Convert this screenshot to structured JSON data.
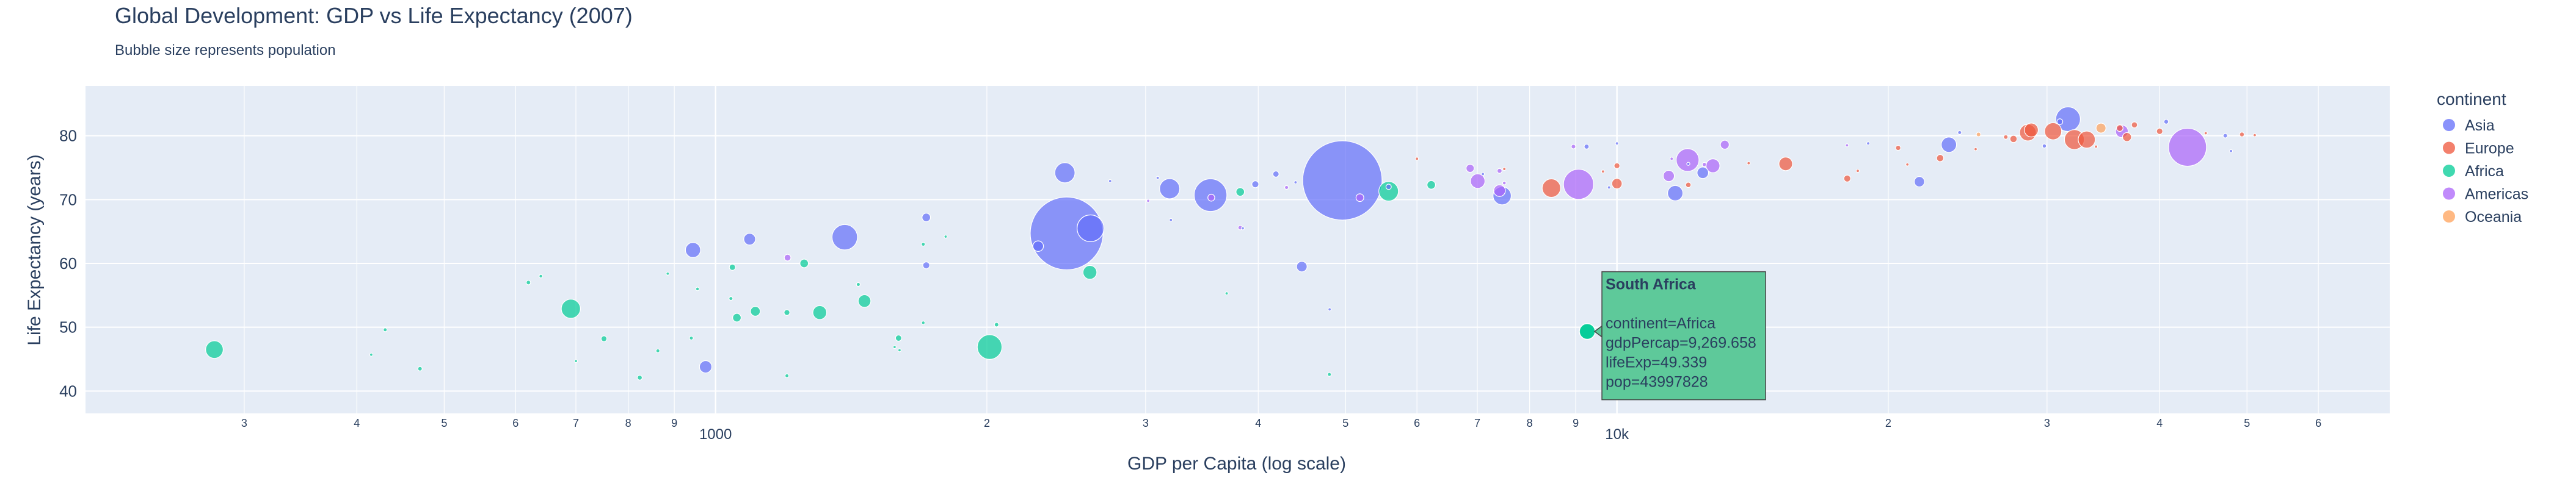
{
  "chart_data": {
    "type": "scatter",
    "title": "Global Development: GDP vs Life Expectancy (2007)",
    "subtitle": "Bubble size represents population",
    "xlabel": "GDP per Capita (log scale)",
    "ylabel": "Life Expectancy (years)",
    "x_scale": "log",
    "xlim": [
      200,
      72000
    ],
    "ylim": [
      36.5,
      87.8
    ],
    "y_ticks": [
      40,
      50,
      60,
      70,
      80
    ],
    "x_ticks_major": [
      {
        "value": 1000,
        "label": "1000"
      },
      {
        "value": 10000,
        "label": "10k"
      }
    ],
    "x_ticks_minor": [
      {
        "value": 300,
        "label": "3"
      },
      {
        "value": 400,
        "label": "4"
      },
      {
        "value": 500,
        "label": "5"
      },
      {
        "value": 600,
        "label": "6"
      },
      {
        "value": 700,
        "label": "7"
      },
      {
        "value": 800,
        "label": "8"
      },
      {
        "value": 900,
        "label": "9"
      },
      {
        "value": 2000,
        "label": "2"
      },
      {
        "value": 3000,
        "label": "3"
      },
      {
        "value": 4000,
        "label": "4"
      },
      {
        "value": 5000,
        "label": "5"
      },
      {
        "value": 6000,
        "label": "6"
      },
      {
        "value": 7000,
        "label": "7"
      },
      {
        "value": 8000,
        "label": "8"
      },
      {
        "value": 9000,
        "label": "9"
      },
      {
        "value": 20000,
        "label": "2"
      },
      {
        "value": 30000,
        "label": "3"
      },
      {
        "value": 40000,
        "label": "4"
      },
      {
        "value": 50000,
        "label": "5"
      },
      {
        "value": 60000,
        "label": "6"
      }
    ],
    "legend": {
      "title": "continent",
      "placement": "right",
      "entries": [
        {
          "name": "Asia",
          "color": "#636efa"
        },
        {
          "name": "Europe",
          "color": "#ef553b"
        },
        {
          "name": "Africa",
          "color": "#00cc96"
        },
        {
          "name": "Americas",
          "color": "#ab63fa"
        },
        {
          "name": "Oceania",
          "color": "#ffa15a"
        }
      ]
    },
    "series": [
      {
        "name": "Asia",
        "color": "#636efa",
        "points": [
          {
            "gdp": 2452,
            "life": 64.7,
            "pop": 1110396331
          },
          {
            "gdp": 4959,
            "life": 73.0,
            "pop": 1318683096
          },
          {
            "gdp": 3541,
            "life": 70.7,
            "pop": 223547000
          },
          {
            "gdp": 2606,
            "life": 65.5,
            "pop": 150448339
          },
          {
            "gdp": 1391,
            "life": 64.1,
            "pop": 135031164
          },
          {
            "gdp": 3190,
            "life": 71.7,
            "pop": 85262356
          },
          {
            "gdp": 2441,
            "life": 74.2,
            "pop": 85262356
          },
          {
            "gdp": 7458,
            "life": 70.6,
            "pop": 69453570
          },
          {
            "gdp": 31656,
            "life": 82.6,
            "pop": 127467972
          },
          {
            "gdp": 11606,
            "life": 71.0,
            "pop": 49044790
          },
          {
            "gdp": 23348,
            "life": 78.6,
            "pop": 49044790
          },
          {
            "gdp": 944,
            "life": 62.1,
            "pop": 47761980
          },
          {
            "gdp": 975,
            "life": 43.8,
            "pop": 31889923
          },
          {
            "gdp": 1091,
            "life": 63.8,
            "pop": 28901790
          },
          {
            "gdp": 2280,
            "life": 62.7,
            "pop": 23301725
          },
          {
            "gdp": 4471,
            "life": 59.5,
            "pop": 23301725
          },
          {
            "gdp": 21654,
            "life": 72.8,
            "pop": 22276056
          },
          {
            "gdp": 12452,
            "life": 74.2,
            "pop": 27601038
          },
          {
            "gdp": 1713,
            "life": 67.2,
            "pop": 15000000
          },
          {
            "gdp": 1713,
            "life": 59.7,
            "pop": 10000000
          },
          {
            "gdp": 3970,
            "life": 72.4,
            "pop": 10000000
          },
          {
            "gdp": 4185,
            "life": 74.0,
            "pop": 8000000
          },
          {
            "gdp": 5581,
            "life": 72.0,
            "pop": 6000000
          },
          {
            "gdp": 9254,
            "life": 78.3,
            "pop": 5000000
          },
          {
            "gdp": 47307,
            "life": 80.0,
            "pop": 4000000
          },
          {
            "gdp": 31000,
            "life": 82.2,
            "pop": 7000000
          },
          {
            "gdp": 40676,
            "life": 82.2,
            "pop": 4500000
          },
          {
            "gdp": 24000,
            "life": 80.5,
            "pop": 3000000
          },
          {
            "gdp": 29796,
            "life": 78.4,
            "pop": 3500000
          },
          {
            "gdp": 19000,
            "life": 78.8,
            "pop": 2000000
          },
          {
            "gdp": 10000,
            "life": 78.8,
            "pop": 1000000
          },
          {
            "gdp": 12000,
            "life": 75.6,
            "pop": 2000000
          },
          {
            "gdp": 3094,
            "life": 73.4,
            "pop": 1000000
          },
          {
            "gdp": 2740,
            "life": 72.9,
            "pop": 1000000
          },
          {
            "gdp": 3200,
            "life": 66.8,
            "pop": 1000000
          },
          {
            "gdp": 3845,
            "life": 65.5,
            "pop": 1500000
          },
          {
            "gdp": 4400,
            "life": 72.7,
            "pop": 1500000
          },
          {
            "gdp": 7100,
            "life": 74.0,
            "pop": 1500000
          },
          {
            "gdp": 9800,
            "life": 71.9,
            "pop": 1000000
          },
          {
            "gdp": 48000,
            "life": 77.6,
            "pop": 900000
          },
          {
            "gdp": 4800,
            "life": 52.8,
            "pop": 800000
          }
        ]
      },
      {
        "name": "Europe",
        "color": "#ef553b",
        "points": [
          {
            "gdp": 32170,
            "life": 79.4,
            "pop": 82400996
          },
          {
            "gdp": 30470,
            "life": 80.7,
            "pop": 61083916
          },
          {
            "gdp": 33203,
            "life": 79.4,
            "pop": 60776238
          },
          {
            "gdp": 28570,
            "life": 80.5,
            "pop": 58147733
          },
          {
            "gdp": 28821,
            "life": 80.9,
            "pop": 40448191
          },
          {
            "gdp": 8458,
            "life": 71.8,
            "pop": 71158647
          },
          {
            "gdp": 15390,
            "life": 75.6,
            "pop": 38518241
          },
          {
            "gdp": 10000,
            "life": 72.5,
            "pop": 22276056
          },
          {
            "gdp": 36798,
            "life": 79.8,
            "pop": 16570613
          },
          {
            "gdp": 27538,
            "life": 79.5,
            "pop": 10706290
          },
          {
            "gdp": 22833,
            "life": 76.5,
            "pop": 10642836
          },
          {
            "gdp": 18009,
            "life": 73.3,
            "pop": 9956108
          },
          {
            "gdp": 36126,
            "life": 81.2,
            "pop": 9031088
          },
          {
            "gdp": 40000,
            "life": 80.7,
            "pop": 8199783
          },
          {
            "gdp": 37506,
            "life": 81.7,
            "pop": 7554661
          },
          {
            "gdp": 20510,
            "life": 78.1,
            "pop": 5468120
          },
          {
            "gdp": 49357,
            "life": 80.2,
            "pop": 4627926
          },
          {
            "gdp": 10000,
            "life": 75.3,
            "pop": 7000000
          },
          {
            "gdp": 12000,
            "life": 72.3,
            "pop": 6000000
          },
          {
            "gdp": 6000,
            "life": 76.4,
            "pop": 2000000
          },
          {
            "gdp": 7500,
            "life": 74.8,
            "pop": 2000000
          },
          {
            "gdp": 14000,
            "life": 75.7,
            "pop": 2000000
          },
          {
            "gdp": 18500,
            "life": 74.5,
            "pop": 2000000
          },
          {
            "gdp": 25000,
            "life": 77.9,
            "pop": 1500000
          },
          {
            "gdp": 21000,
            "life": 75.5,
            "pop": 2000000
          },
          {
            "gdp": 27000,
            "life": 79.8,
            "pop": 4000000
          },
          {
            "gdp": 34000,
            "life": 78.3,
            "pop": 1500000
          },
          {
            "gdp": 9650,
            "life": 74.4,
            "pop": 1500000
          },
          {
            "gdp": 45000,
            "life": 80.4,
            "pop": 1000000
          },
          {
            "gdp": 51000,
            "life": 80.1,
            "pop": 800000
          }
        ]
      },
      {
        "name": "Africa",
        "color": "#00cc96",
        "points": [
          {
            "gdp": 278,
            "life": 46.5,
            "pop": 64606759
          },
          {
            "gdp": 2014,
            "life": 46.9,
            "pop": 128000000
          },
          {
            "gdp": 691,
            "life": 52.9,
            "pop": 76511887
          },
          {
            "gdp": 1305,
            "life": 52.3,
            "pop": 40000000
          },
          {
            "gdp": 5581,
            "life": 71.3,
            "pop": 80264543
          },
          {
            "gdp": 2602,
            "life": 58.6,
            "pop": 40000000
          },
          {
            "gdp": 1463,
            "life": 54.1,
            "pop": 33333216
          },
          {
            "gdp": 9270,
            "life": 49.339,
            "pop": 43997828
          },
          {
            "gdp": 1107,
            "life": 52.5,
            "pop": 20000000
          },
          {
            "gdp": 1254,
            "life": 60.0,
            "pop": 15000000
          },
          {
            "gdp": 1056,
            "life": 51.5,
            "pop": 15000000
          },
          {
            "gdp": 3820,
            "life": 71.2,
            "pop": 15000000
          },
          {
            "gdp": 6223,
            "life": 72.3,
            "pop": 15000000
          },
          {
            "gdp": 1044,
            "life": 59.4,
            "pop": 8000000
          },
          {
            "gdp": 1596,
            "life": 48.3,
            "pop": 8000000
          },
          {
            "gdp": 752,
            "life": 48.2,
            "pop": 7000000
          },
          {
            "gdp": 1200,
            "life": 52.3,
            "pop": 7000000
          },
          {
            "gdp": 430,
            "life": 49.6,
            "pop": 3000000
          },
          {
            "gdp": 470,
            "life": 43.5,
            "pop": 4000000
          },
          {
            "gdp": 620,
            "life": 57.0,
            "pop": 4000000
          },
          {
            "gdp": 640,
            "life": 58.0,
            "pop": 2500000
          },
          {
            "gdp": 863,
            "life": 46.3,
            "pop": 3000000
          },
          {
            "gdp": 824,
            "life": 42.1,
            "pop": 5000000
          },
          {
            "gdp": 940,
            "life": 48.3,
            "pop": 3000000
          },
          {
            "gdp": 1200,
            "life": 42.4,
            "pop": 3000000
          },
          {
            "gdp": 1040,
            "life": 54.5,
            "pop": 3000000
          },
          {
            "gdp": 1440,
            "life": 56.7,
            "pop": 3000000
          },
          {
            "gdp": 2050,
            "life": 50.4,
            "pop": 4000000
          },
          {
            "gdp": 1700,
            "life": 63.0,
            "pop": 3000000
          },
          {
            "gdp": 1700,
            "life": 50.7,
            "pop": 2500000
          },
          {
            "gdp": 885,
            "life": 58.4,
            "pop": 2000000
          },
          {
            "gdp": 4797,
            "life": 42.6,
            "pop": 3000000
          },
          {
            "gdp": 955,
            "life": 56.0,
            "pop": 2500000
          },
          {
            "gdp": 1580,
            "life": 46.9,
            "pop": 500000
          },
          {
            "gdp": 1800,
            "life": 64.2,
            "pop": 800000
          },
          {
            "gdp": 3690,
            "life": 55.3,
            "pop": 700000
          },
          {
            "gdp": 700,
            "life": 44.7,
            "pop": 1000000
          },
          {
            "gdp": 415,
            "life": 45.7,
            "pop": 900000
          },
          {
            "gdp": 1600,
            "life": 46.4,
            "pop": 400000
          }
        ]
      },
      {
        "name": "Americas",
        "color": "#ab63fa",
        "points": [
          {
            "gdp": 42952,
            "life": 78.2,
            "pop": 301139947
          },
          {
            "gdp": 9066,
            "life": 72.4,
            "pop": 190010647
          },
          {
            "gdp": 11978,
            "life": 76.2,
            "pop": 108700891
          },
          {
            "gdp": 7007,
            "life": 72.9,
            "pop": 44227550
          },
          {
            "gdp": 12779,
            "life": 75.3,
            "pop": 40301927
          },
          {
            "gdp": 36319,
            "life": 80.7,
            "pop": 33390141
          },
          {
            "gdp": 7409,
            "life": 71.4,
            "pop": 28674757
          },
          {
            "gdp": 11416,
            "life": 73.7,
            "pop": 26084662
          },
          {
            "gdp": 13172,
            "life": 78.6,
            "pop": 16284741
          },
          {
            "gdp": 6873,
            "life": 74.9,
            "pop": 13755680
          },
          {
            "gdp": 5186,
            "life": 70.3,
            "pop": 12572928
          },
          {
            "gdp": 3548,
            "life": 70.3,
            "pop": 10000000
          },
          {
            "gdp": 1202,
            "life": 60.9,
            "pop": 9119152
          },
          {
            "gdp": 8948,
            "life": 78.3,
            "pop": 4133884
          },
          {
            "gdp": 7409,
            "life": 74.5,
            "pop": 5000000
          },
          {
            "gdp": 12500,
            "life": 75.5,
            "pop": 3500000
          },
          {
            "gdp": 3820,
            "life": 65.6,
            "pop": 4000000
          },
          {
            "gdp": 4300,
            "life": 71.9,
            "pop": 3000000
          },
          {
            "gdp": 7500,
            "life": 72.6,
            "pop": 2500000
          },
          {
            "gdp": 11500,
            "life": 76.4,
            "pop": 1000000
          },
          {
            "gdp": 18000,
            "life": 78.5,
            "pop": 1000000
          },
          {
            "gdp": 3020,
            "life": 69.8,
            "pop": 1000000
          }
        ]
      },
      {
        "name": "Oceania",
        "color": "#ffa15a",
        "points": [
          {
            "gdp": 34435,
            "life": 81.2,
            "pop": 20434176
          },
          {
            "gdp": 25185,
            "life": 80.2,
            "pop": 4115771
          }
        ]
      }
    ],
    "tooltip": {
      "title": "South Africa",
      "lines": [
        "continent=Africa",
        "gdpPercap=9,269.658",
        "lifeExp=49.339",
        "pop=43997828"
      ],
      "gdp": 9270,
      "life": 49.339,
      "color": "#00cc96"
    }
  }
}
